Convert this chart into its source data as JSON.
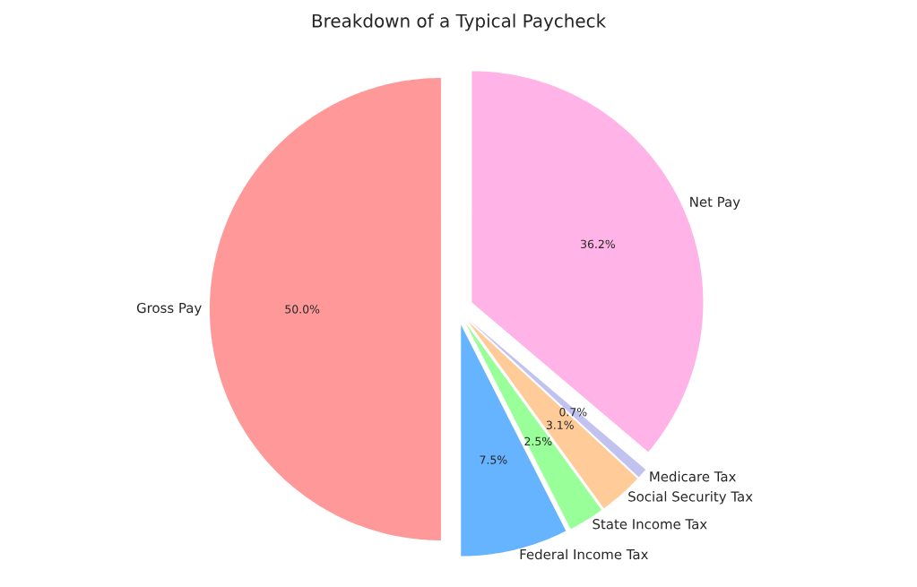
{
  "chart_data": {
    "type": "pie",
    "title": "Breakdown of a Typical Paycheck",
    "categories": [
      "Gross Pay",
      "Federal Income Tax",
      "State Income Tax",
      "Social Security Tax",
      "Medicare Tax",
      "Net Pay"
    ],
    "values": [
      50.0,
      7.5,
      2.5,
      3.1,
      0.7,
      36.2
    ],
    "colors": [
      "#ff9999",
      "#66b3ff",
      "#99ff99",
      "#ffcc99",
      "#c2c2f0",
      "#ffb3e6"
    ],
    "value_labels": [
      "50.0%",
      "7.5%",
      "2.5%",
      "3.1%",
      "0.7%",
      "36.2%"
    ]
  }
}
